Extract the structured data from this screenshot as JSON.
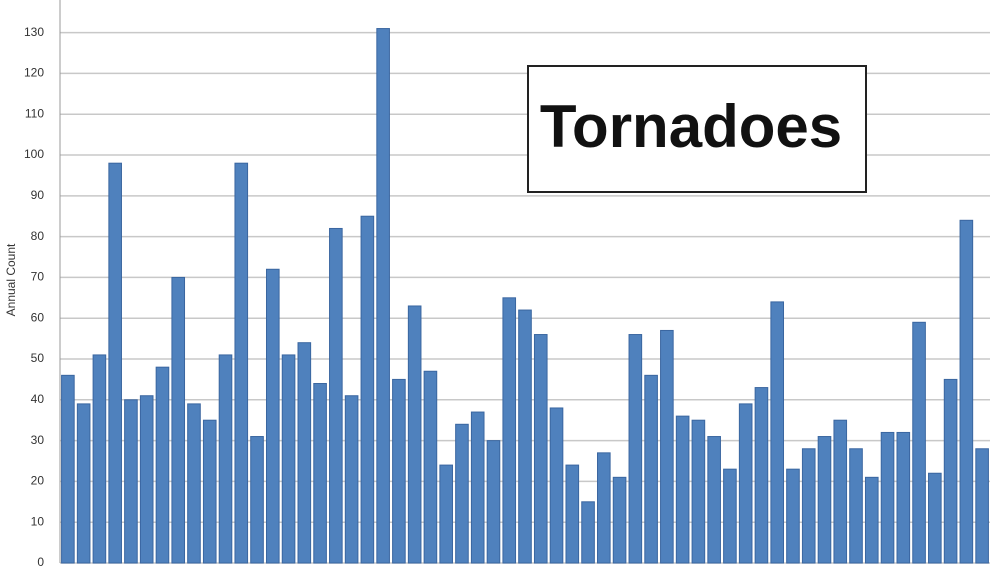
{
  "chart_data": {
    "type": "bar",
    "y_label": "Annual Count",
    "annotation": "Tornadoes",
    "categories": [
      null,
      null,
      null,
      null,
      null,
      null,
      null,
      null,
      null,
      null,
      null,
      null,
      null,
      null,
      null,
      null,
      null,
      null,
      null,
      null,
      null,
      null,
      null,
      null,
      null,
      null,
      null,
      null,
      null,
      null,
      null,
      null,
      null,
      null,
      null,
      null,
      null,
      null,
      null,
      null,
      null,
      null,
      null,
      null,
      null,
      null,
      null,
      null,
      null,
      null,
      null,
      null,
      null,
      null,
      null,
      null,
      null,
      null,
      null
    ],
    "values": [
      46,
      39,
      51,
      98,
      40,
      41,
      48,
      70,
      39,
      35,
      51,
      98,
      31,
      72,
      51,
      54,
      44,
      82,
      41,
      85,
      131,
      45,
      63,
      47,
      24,
      34,
      37,
      30,
      65,
      62,
      56,
      38,
      24,
      15,
      27,
      21,
      56,
      46,
      57,
      36,
      35,
      31,
      23,
      39,
      43,
      64,
      23,
      28,
      31,
      35,
      28,
      21,
      32,
      32,
      59,
      22,
      45,
      84,
      28
    ],
    "color": "#4f81bd",
    "ylim": [
      0,
      138
    ],
    "yticks": [
      0,
      10,
      20,
      30,
      40,
      50,
      60,
      70,
      80,
      90,
      100,
      110,
      120,
      130
    ],
    "grid": true
  }
}
